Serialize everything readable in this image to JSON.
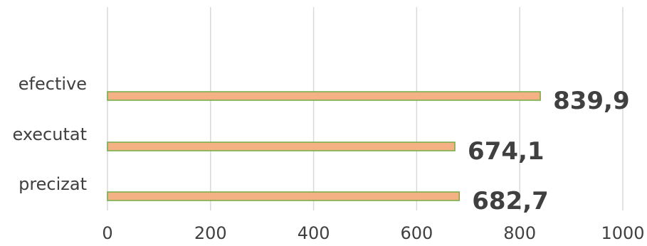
{
  "chart_data": {
    "type": "bar",
    "orientation": "horizontal",
    "categories": [
      "efective",
      "executat",
      "precizat"
    ],
    "values": [
      839.9,
      674.1,
      682.7
    ],
    "value_labels": [
      "839,9",
      "674,1",
      "682,7"
    ],
    "xlim": [
      0,
      1000
    ],
    "x_ticks": [
      0,
      200,
      400,
      600,
      800,
      1000
    ],
    "x_tick_labels": [
      "0",
      "200",
      "400",
      "600",
      "800",
      "1000"
    ],
    "grid": true,
    "legend": "none",
    "colors": {
      "bar_fill": "#F4B183",
      "bar_stroke": "#70AD47",
      "grid": "#D9D9D9",
      "text": "#404040"
    }
  }
}
